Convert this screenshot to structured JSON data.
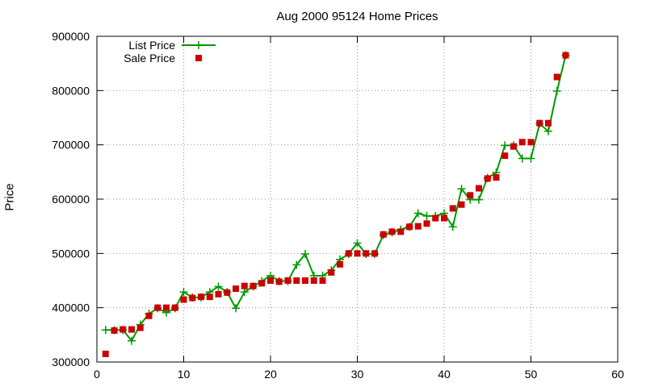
{
  "chart_data": {
    "type": "line",
    "title": "Aug 2000 95124 Home Prices",
    "xlabel": "",
    "ylabel": "Price",
    "xlim": [
      0,
      60
    ],
    "ylim": [
      300000,
      900000
    ],
    "xticks": [
      0,
      10,
      20,
      30,
      40,
      50,
      60
    ],
    "yticks": [
      300000,
      400000,
      500000,
      600000,
      700000,
      800000,
      900000
    ],
    "grid": true,
    "legend_position": "top-left",
    "series": [
      {
        "name": "List Price",
        "style": "line+cross",
        "color": "#009900",
        "x": [
          1,
          2,
          3,
          4,
          5,
          6,
          7,
          8,
          9,
          10,
          11,
          12,
          13,
          14,
          15,
          16,
          17,
          18,
          19,
          20,
          21,
          22,
          23,
          24,
          25,
          26,
          27,
          28,
          29,
          30,
          31,
          32,
          33,
          34,
          35,
          36,
          37,
          38,
          39,
          40,
          41,
          42,
          43,
          44,
          45,
          46,
          47,
          48,
          49,
          50,
          51,
          52,
          53,
          54
        ],
        "y": [
          359000,
          359000,
          359000,
          339000,
          369000,
          389000,
          399000,
          391000,
          399000,
          429000,
          419000,
          419000,
          429000,
          439000,
          429000,
          399000,
          429000,
          439000,
          449000,
          459000,
          449000,
          449000,
          479000,
          499000,
          459000,
          459000,
          469000,
          489000,
          499000,
          519000,
          499000,
          499000,
          534000,
          539000,
          544000,
          549000,
          574000,
          569000,
          569000,
          574000,
          549000,
          619000,
          599000,
          599000,
          639000,
          649000,
          699000,
          699000,
          675000,
          675000,
          739000,
          725000,
          799000,
          865000
        ]
      },
      {
        "name": "Sale Price",
        "style": "square",
        "color": "#cc0000",
        "x": [
          1,
          2,
          3,
          4,
          5,
          6,
          7,
          8,
          9,
          10,
          11,
          12,
          13,
          14,
          15,
          16,
          17,
          18,
          19,
          20,
          21,
          22,
          23,
          24,
          25,
          26,
          27,
          28,
          29,
          30,
          31,
          32,
          33,
          34,
          35,
          36,
          37,
          38,
          39,
          40,
          41,
          42,
          43,
          44,
          45,
          46,
          47,
          48,
          49,
          50,
          51,
          52,
          53,
          54
        ],
        "y": [
          315000,
          358000,
          360000,
          360000,
          363000,
          385000,
          400000,
          400000,
          400000,
          415000,
          418000,
          420000,
          420000,
          425000,
          428000,
          435000,
          440000,
          440000,
          445000,
          450000,
          448000,
          450000,
          450000,
          450000,
          450000,
          450000,
          465000,
          480000,
          500000,
          500000,
          500000,
          500000,
          535000,
          540000,
          540000,
          549000,
          550000,
          555000,
          565000,
          565000,
          583000,
          590000,
          607000,
          620000,
          638000,
          640000,
          680000,
          697000,
          705000,
          705000,
          740000,
          740000,
          825000,
          865000
        ]
      }
    ]
  },
  "colors": {
    "list_price": "#009900",
    "sale_price": "#cc0000",
    "grid": "#999999"
  }
}
